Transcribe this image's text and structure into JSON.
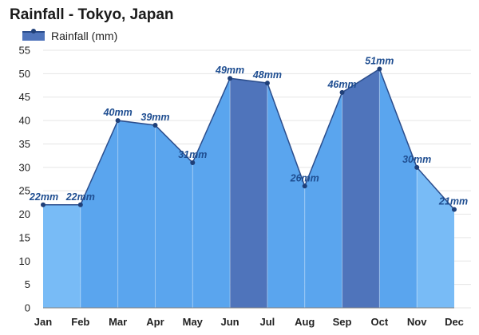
{
  "title": "Rainfall - Tokyo, Japan",
  "legend": {
    "label": "Rainfall (mm)"
  },
  "colors": {
    "dark_band": "#4f74bb",
    "mid_band": "#5aa5ee",
    "light_band": "#78bbf6",
    "line": "#2b4d8c",
    "point": "#1f3f78",
    "grid": "#e5e5e5",
    "label": "#1f4e91"
  },
  "chart_data": {
    "type": "area",
    "categories": [
      "Jan",
      "Feb",
      "Mar",
      "Apr",
      "May",
      "Jun",
      "Jul",
      "Aug",
      "Sep",
      "Oct",
      "Nov",
      "Dec"
    ],
    "series": [
      {
        "name": "Rainfall (mm)",
        "values": [
          22,
          22,
          40,
          39,
          31,
          49,
          48,
          26,
          46,
          51,
          30,
          21
        ],
        "labels": [
          "22mm",
          "22mm",
          "40mm",
          "39mm",
          "31mm",
          "49mm",
          "48mm",
          "26mm",
          "46mm",
          "51mm",
          "30mm",
          "21mm"
        ]
      }
    ],
    "title": "Rainfall - Tokyo, Japan",
    "xlabel": "",
    "ylabel": "",
    "ylim": [
      0,
      55
    ],
    "yticks": [
      0,
      5,
      10,
      15,
      20,
      25,
      30,
      35,
      40,
      45,
      50,
      55
    ],
    "grid": true,
    "legend_position": "top-left"
  }
}
